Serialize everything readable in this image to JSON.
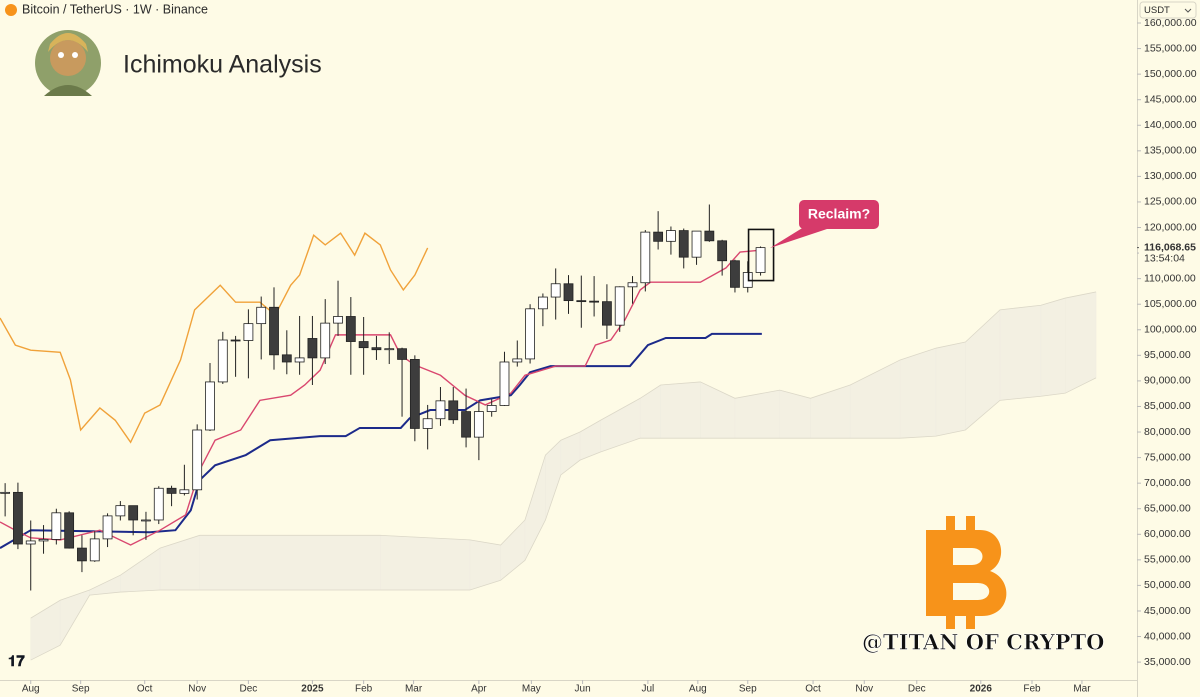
{
  "chart_data": {
    "type": "candlestick",
    "subtitle": "Bitcoin / TetherUS · 1W · Binance",
    "title": "Ichimoku Analysis",
    "currency": "USDT",
    "countdown": "13:54:04",
    "annotation": "Reclaim?",
    "watermark": "@TITAN OF CRYPTO",
    "last_price": {
      "value": 116068.65,
      "label": "116,068.65"
    },
    "x": [
      0,
      1,
      2,
      3,
      4,
      5,
      6,
      7,
      8,
      9,
      10,
      11,
      12,
      13,
      14,
      15,
      16,
      17,
      18,
      19,
      20,
      21,
      22,
      23,
      24,
      25,
      26,
      27,
      28,
      29,
      30,
      31,
      32,
      33,
      34,
      35,
      36,
      37,
      38,
      39,
      40,
      41,
      42,
      43,
      44,
      45,
      46,
      47,
      48,
      49,
      50,
      51,
      52,
      53,
      54,
      55,
      56,
      57,
      58,
      59
    ],
    "open": [
      68100,
      68200,
      58100,
      58700,
      59000,
      64200,
      57300,
      54800,
      59100,
      63600,
      65600,
      62800,
      62800,
      69000,
      68000,
      68700,
      80400,
      89800,
      98000,
      97900,
      101200,
      104400,
      95100,
      93700,
      98300,
      94500,
      101300,
      102600,
      97700,
      96500,
      96100,
      96300,
      94200,
      80700,
      82600,
      86100,
      84000,
      79000,
      84000,
      85200,
      93700,
      94300,
      104100,
      106400,
      109000,
      105700,
      105600,
      105500,
      100900,
      108400,
      109200,
      119100,
      117300,
      119400,
      114200,
      119300,
      117400,
      113500,
      108300,
      111200
    ],
    "high": [
      70000,
      70100,
      62700,
      61800,
      65000,
      64500,
      59800,
      60600,
      64100,
      66500,
      65600,
      64400,
      69400,
      69500,
      73600,
      81500,
      93500,
      99600,
      98800,
      104000,
      106500,
      108300,
      99900,
      102700,
      102700,
      106000,
      109600,
      106400,
      102500,
      98800,
      99500,
      96500,
      95000,
      85300,
      88800,
      88800,
      88500,
      86000,
      86400,
      95700,
      97900,
      105000,
      107100,
      112000,
      110700,
      110600,
      110500,
      108900,
      108500,
      110500,
      119500,
      123200,
      120200,
      119800,
      119300,
      124500,
      117600,
      113700,
      113400,
      116300
    ],
    "low": [
      63500,
      57100,
      49000,
      56200,
      58000,
      57200,
      52600,
      54600,
      57500,
      62700,
      59800,
      58900,
      62000,
      65500,
      67600,
      66800,
      80200,
      89400,
      90800,
      90500,
      94200,
      92200,
      91300,
      91200,
      89200,
      93300,
      98800,
      91200,
      91200,
      94100,
      93300,
      83000,
      78200,
      76600,
      81200,
      81600,
      77000,
      74500,
      83000,
      85100,
      92800,
      93400,
      100700,
      102000,
      103100,
      100400,
      102600,
      98200,
      99600,
      105100,
      107500,
      115700,
      114700,
      112000,
      112700,
      117200,
      110600,
      107300,
      107300,
      110600
    ],
    "close": [
      68200,
      58100,
      58700,
      59000,
      64200,
      57300,
      54800,
      59100,
      63600,
      65600,
      62800,
      62800,
      69000,
      68000,
      68700,
      80400,
      89800,
      98000,
      97900,
      101200,
      104400,
      95100,
      93700,
      94500,
      94500,
      101300,
      102600,
      97700,
      96500,
      96100,
      96300,
      94200,
      80700,
      82600,
      86100,
      82400,
      79000,
      84000,
      85200,
      93700,
      94300,
      104100,
      106400,
      109000,
      105700,
      105600,
      105500,
      100900,
      108400,
      109200,
      119100,
      117300,
      119400,
      114200,
      119300,
      117400,
      113500,
      108300,
      111200,
      116068.65
    ],
    "up_color": "#ffffff",
    "down_color": "#3d3d3d",
    "lines": [
      {
        "color": "#1c2a8a",
        "x": [
          -0.4,
          2.0,
          11.3,
          13.3,
          14.5,
          15.2,
          16.4,
          18.8,
          20.7,
          24.6,
          26.6,
          27.7,
          30.9,
          31.6,
          33.2,
          35.9,
          37.1,
          39.5,
          40.2,
          41.0,
          42.6,
          48.8,
          50.2,
          51.6,
          54.7,
          55.2,
          59.1
        ],
        "values": [
          57300,
          60800,
          60400,
          60800,
          64700,
          70600,
          73500,
          75500,
          78400,
          79200,
          79200,
          80800,
          80800,
          82700,
          84300,
          84300,
          86200,
          87200,
          89200,
          91700,
          92900,
          92900,
          97000,
          98400,
          98400,
          99200,
          99200
        ]
      },
      {
        "color": "#d9476f",
        "x": [
          -0.4,
          0.8,
          2.0,
          4.3,
          7.4,
          9.8,
          12.1,
          14.1,
          15.2,
          16.4,
          18.4,
          19.9,
          22.3,
          23.4,
          24.6,
          25.8,
          30.1,
          30.9,
          32.0,
          34.0,
          35.9,
          37.5,
          39.5,
          40.6,
          43.0,
          45.3,
          46.1,
          47.3,
          48.4,
          49.6,
          50.4,
          54.3,
          56.3,
          57.4,
          59.1
        ],
        "values": [
          62400,
          60800,
          59300,
          58900,
          60800,
          57900,
          60800,
          63800,
          72600,
          78400,
          80400,
          86200,
          87200,
          89200,
          92100,
          99000,
          99000,
          95000,
          93100,
          91100,
          87200,
          85300,
          87600,
          91100,
          92900,
          92900,
          97000,
          98000,
          101900,
          107800,
          109300,
          109300,
          112100,
          115200,
          115600
        ]
      },
      {
        "color": "#f0a23a",
        "x": [
          -0.4,
          0.8,
          2.0,
          4.3,
          5.1,
          5.9,
          7.4,
          8.6,
          9.8,
          10.9,
          12.1,
          13.7,
          14.8,
          16.8,
          18.0,
          19.9,
          21.1,
          22.3,
          23.0,
          24.1,
          25.0,
          26.2,
          27.3,
          28.1,
          29.3,
          30.1,
          31.1,
          32.0,
          33.0
        ],
        "values": [
          102300,
          97000,
          96000,
          95600,
          90200,
          80400,
          84700,
          82300,
          78000,
          83700,
          85300,
          94100,
          103900,
          108700,
          105400,
          105400,
          102900,
          108700,
          110700,
          118500,
          116600,
          118900,
          114600,
          118900,
          116600,
          111700,
          107800,
          110700,
          116000
        ]
      }
    ],
    "cloud": {
      "color": "#efece0",
      "x": [
        2.0,
        4.3,
        6.6,
        9.0,
        12.1,
        15.2,
        29.3,
        36.3,
        38.7,
        40.6,
        42.2,
        43.4,
        44.9,
        46.5,
        49.6,
        51.2,
        54.3,
        57.0,
        60.5,
        62.9,
        66.0,
        69.9,
        72.7,
        75.0,
        77.7,
        80.9,
        82.8,
        85.2
      ],
      "upper": [
        43600,
        47100,
        49100,
        52000,
        57300,
        59800,
        59800,
        58900,
        57900,
        62800,
        75500,
        78400,
        80000,
        82300,
        86600,
        89200,
        89800,
        86600,
        88200,
        86600,
        89200,
        94100,
        96400,
        97600,
        103900,
        104800,
        106200,
        107400
      ],
      "lower": [
        35400,
        38300,
        48100,
        48700,
        49100,
        49100,
        49100,
        49100,
        51000,
        54900,
        62800,
        71600,
        74500,
        76100,
        78800,
        78800,
        78800,
        78800,
        78800,
        78800,
        78800,
        78800,
        79200,
        80400,
        86200,
        87000,
        87600,
        90600
      ]
    },
    "xlim": [
      -0.4,
      88.4
    ],
    "xticks": [
      {
        "value": 2.0,
        "label": "Aug"
      },
      {
        "value": 5.9,
        "label": "Sep"
      },
      {
        "value": 10.9,
        "label": "Oct"
      },
      {
        "value": 15.0,
        "label": "Nov"
      },
      {
        "value": 19.0,
        "label": "Dec"
      },
      {
        "value": 24.0,
        "label": "2025"
      },
      {
        "value": 28.0,
        "label": "Feb"
      },
      {
        "value": 31.9,
        "label": "Mar"
      },
      {
        "value": 37.0,
        "label": "Apr"
      },
      {
        "value": 41.1,
        "label": "May"
      },
      {
        "value": 45.1,
        "label": "Jun"
      },
      {
        "value": 50.2,
        "label": "Jul"
      },
      {
        "value": 54.1,
        "label": "Aug"
      },
      {
        "value": 58.0,
        "label": "Sep"
      },
      {
        "value": 63.1,
        "label": "Oct"
      },
      {
        "value": 67.1,
        "label": "Nov"
      },
      {
        "value": 71.2,
        "label": "Dec"
      },
      {
        "value": 76.2,
        "label": "2026"
      },
      {
        "value": 80.2,
        "label": "Feb"
      },
      {
        "value": 84.1,
        "label": "Mar"
      }
    ],
    "ylim": [
      31500,
      164500
    ],
    "yticks": [
      {
        "value": 35000,
        "label": "35,000.00"
      },
      {
        "value": 40000,
        "label": "40,000.00"
      },
      {
        "value": 45000,
        "label": "45,000.00"
      },
      {
        "value": 50000,
        "label": "50,000.00"
      },
      {
        "value": 55000,
        "label": "55,000.00"
      },
      {
        "value": 60000,
        "label": "60,000.00"
      },
      {
        "value": 65000,
        "label": "65,000.00"
      },
      {
        "value": 70000,
        "label": "70,000.00"
      },
      {
        "value": 75000,
        "label": "75,000.00"
      },
      {
        "value": 80000,
        "label": "80,000.00"
      },
      {
        "value": 85000,
        "label": "85,000.00"
      },
      {
        "value": 90000,
        "label": "90,000.00"
      },
      {
        "value": 95000,
        "label": "95,000.00"
      },
      {
        "value": 100000,
        "label": "100,000.00"
      },
      {
        "value": 105000,
        "label": "105,000.00"
      },
      {
        "value": 110000,
        "label": "110,000.00"
      },
      {
        "value": 115000,
        "label": "115,000.00"
      },
      {
        "value": 120000,
        "label": "120,000.00"
      },
      {
        "value": 125000,
        "label": "125,000.00"
      },
      {
        "value": 130000,
        "label": "130,000.00"
      },
      {
        "value": 135000,
        "label": "135,000.00"
      },
      {
        "value": 140000,
        "label": "140,000.00"
      },
      {
        "value": 145000,
        "label": "145,000.00"
      },
      {
        "value": 150000,
        "label": "150,000.00"
      },
      {
        "value": 155000,
        "label": "155,000.00"
      },
      {
        "value": 160000,
        "label": "160,000.00"
      }
    ]
  }
}
